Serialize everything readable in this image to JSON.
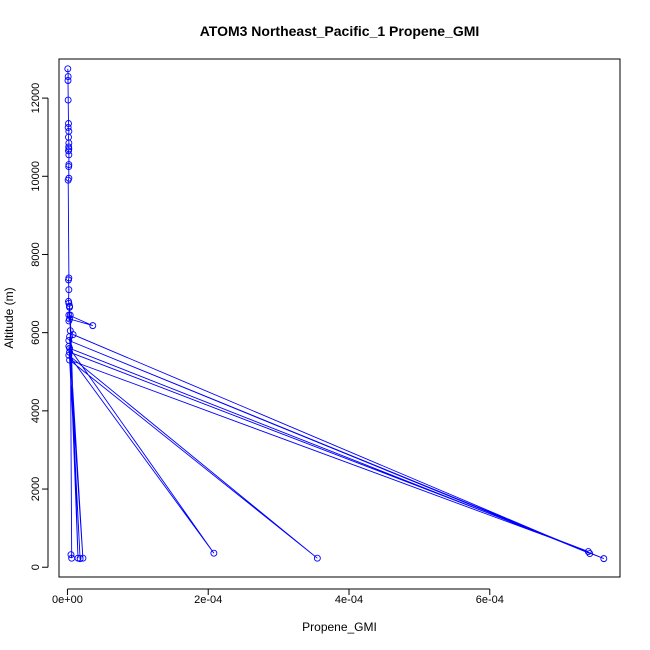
{
  "chart_data": {
    "type": "line",
    "title": "ATOM3 Northeast_Pacific_1 Propene_GMI",
    "xlabel": "Propene_GMI",
    "ylabel": "Altitude (m)",
    "xlim": [
      -1.2e-05,
      0.000785
    ],
    "ylim": [
      -250,
      13000
    ],
    "x_ticks": [
      {
        "value": 0,
        "label": "0e+00"
      },
      {
        "value": 0.0002,
        "label": "2e-04"
      },
      {
        "value": 0.0004,
        "label": "4e-04"
      },
      {
        "value": 0.0006,
        "label": "6e-04"
      }
    ],
    "y_ticks": [
      {
        "value": 0,
        "label": "0"
      },
      {
        "value": 2000,
        "label": "2000"
      },
      {
        "value": 4000,
        "label": "4000"
      },
      {
        "value": 6000,
        "label": "6000"
      },
      {
        "value": 8000,
        "label": "8000"
      },
      {
        "value": 10000,
        "label": "10000"
      },
      {
        "value": 12000,
        "label": "12000"
      }
    ],
    "grid": false,
    "marker": "open-circle",
    "color": "#0000ff",
    "series": [
      {
        "x": [
          5e-07,
          1e-06,
          8e-07,
          1e-06,
          1.5e-06,
          1e-06,
          2e-06,
          1.5e-06,
          2e-06,
          1.8e-06,
          2e-06,
          1.5e-06,
          2e-06,
          2e-06,
          1.8e-06,
          2e-06,
          1e-06,
          2e-06,
          1.5e-06,
          2e-06,
          1.5e-06,
          2e-06,
          3e-06,
          2e-06,
          3.6e-05,
          3e-06,
          2e-06,
          3e-06,
          4e-06,
          8e-06,
          0.000742,
          2e-06,
          0.000762,
          3e-06,
          0.000208,
          2e-06,
          0.000355,
          3e-06,
          0.00074,
          3e-06,
          1.8e-05,
          2e-06,
          2.2e-05,
          3e-06,
          1.5e-05,
          4e-06,
          6e-06,
          5e-06
        ],
        "y": [
          12750,
          12550,
          12450,
          11950,
          11350,
          11250,
          11150,
          11000,
          10850,
          10750,
          10700,
          10650,
          10550,
          10300,
          10250,
          9950,
          9900,
          7400,
          7350,
          7100,
          6800,
          6750,
          6650,
          6450,
          6180,
          6350,
          6300,
          6680,
          6050,
          5950,
          350,
          5800,
          220,
          5600,
          360,
          5420,
          230,
          5300,
          400,
          5500,
          220,
          5650,
          230,
          5900,
          230,
          6450,
          230,
          320
        ]
      }
    ]
  }
}
